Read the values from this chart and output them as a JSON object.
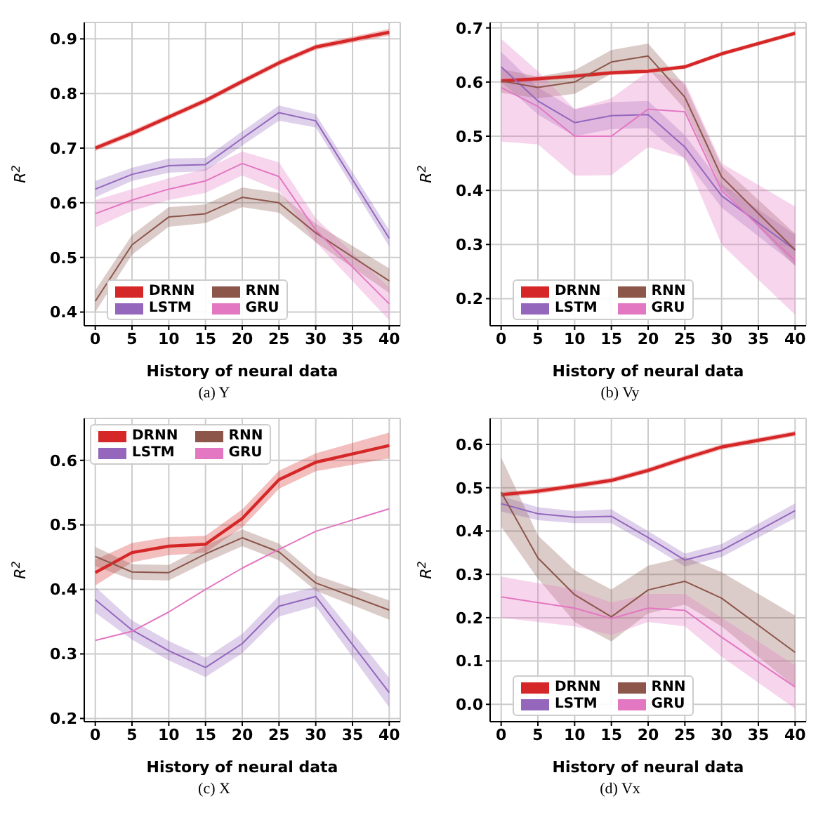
{
  "chart_data": [
    {
      "type": "line",
      "title": "(a) Y",
      "xlabel": "History of neural data",
      "ylabel": "R$^{2}$",
      "x": [
        0,
        5,
        10,
        15,
        20,
        25,
        30,
        40
      ],
      "xlim": [
        -1.5,
        41.5
      ],
      "xticks": [
        0,
        5,
        10,
        15,
        20,
        25,
        30,
        35,
        40
      ],
      "ylim": [
        0.375,
        0.93
      ],
      "yticks": [
        0.4,
        0.5,
        0.6,
        0.7,
        0.8,
        0.9
      ],
      "grid": true,
      "legend": "bottom left",
      "marker": "none",
      "line_style": "solid",
      "series": [
        {
          "name": "DRNN",
          "color": "#d62728",
          "values": [
            0.7,
            0.727,
            0.757,
            0.787,
            0.822,
            0.856,
            0.885,
            0.912
          ],
          "lower": [
            0.695,
            0.722,
            0.752,
            0.782,
            0.817,
            0.851,
            0.88,
            0.906
          ],
          "upper": [
            0.705,
            0.732,
            0.762,
            0.792,
            0.827,
            0.861,
            0.89,
            0.918
          ]
        },
        {
          "name": "LSTM",
          "color": "#9467bd",
          "values": [
            0.625,
            0.652,
            0.668,
            0.67,
            0.718,
            0.765,
            0.75,
            0.535
          ],
          "lower": [
            0.61,
            0.64,
            0.655,
            0.658,
            0.705,
            0.75,
            0.738,
            0.52
          ],
          "upper": [
            0.64,
            0.664,
            0.681,
            0.682,
            0.731,
            0.778,
            0.762,
            0.55
          ]
        },
        {
          "name": "RNN",
          "color": "#8c564b",
          "values": [
            0.42,
            0.523,
            0.574,
            0.58,
            0.61,
            0.6,
            0.545,
            0.457
          ],
          "lower": [
            0.4,
            0.505,
            0.556,
            0.563,
            0.592,
            0.582,
            0.528,
            0.435
          ],
          "upper": [
            0.44,
            0.541,
            0.592,
            0.597,
            0.628,
            0.618,
            0.562,
            0.48
          ]
        },
        {
          "name": "GRU",
          "color": "#e377c2",
          "values": [
            0.58,
            0.605,
            0.625,
            0.64,
            0.672,
            0.648,
            0.55,
            0.415
          ],
          "lower": [
            0.555,
            0.585,
            0.605,
            0.618,
            0.65,
            0.622,
            0.528,
            0.385
          ],
          "upper": [
            0.605,
            0.625,
            0.645,
            0.662,
            0.694,
            0.674,
            0.572,
            0.445
          ]
        }
      ]
    },
    {
      "type": "line",
      "title": "(b) Vy",
      "xlabel": "History of neural data",
      "ylabel": "R$^{2}$",
      "x": [
        0,
        5,
        10,
        15,
        20,
        25,
        30,
        40
      ],
      "xlim": [
        -1.5,
        41.5
      ],
      "xticks": [
        0,
        5,
        10,
        15,
        20,
        25,
        30,
        35,
        40
      ],
      "ylim": [
        0.15,
        0.71
      ],
      "yticks": [
        0.2,
        0.3,
        0.4,
        0.5,
        0.6,
        0.7
      ],
      "grid": true,
      "legend": "bottom left",
      "marker": "none",
      "line_style": "solid",
      "series": [
        {
          "name": "DRNN",
          "color": "#d62728",
          "values": [
            0.602,
            0.606,
            0.611,
            0.617,
            0.62,
            0.628,
            0.652,
            0.69
          ],
          "lower": [
            0.598,
            0.602,
            0.607,
            0.613,
            0.616,
            0.624,
            0.648,
            0.686
          ],
          "upper": [
            0.606,
            0.61,
            0.615,
            0.621,
            0.624,
            0.632,
            0.656,
            0.694
          ]
        },
        {
          "name": "LSTM",
          "color": "#9467bd",
          "values": [
            0.628,
            0.565,
            0.525,
            0.538,
            0.54,
            0.48,
            0.39,
            0.29
          ],
          "lower": [
            0.6,
            0.54,
            0.5,
            0.513,
            0.515,
            0.458,
            0.368,
            0.262
          ],
          "upper": [
            0.656,
            0.59,
            0.55,
            0.563,
            0.565,
            0.502,
            0.412,
            0.318
          ]
        },
        {
          "name": "RNN",
          "color": "#8c564b",
          "values": [
            0.602,
            0.59,
            0.6,
            0.637,
            0.648,
            0.572,
            0.425,
            0.29
          ],
          "lower": [
            0.58,
            0.57,
            0.578,
            0.615,
            0.625,
            0.55,
            0.405,
            0.26
          ],
          "upper": [
            0.624,
            0.61,
            0.622,
            0.659,
            0.671,
            0.594,
            0.445,
            0.32
          ]
        },
        {
          "name": "GRU",
          "color": "#e377c2",
          "values": [
            0.59,
            0.555,
            0.5,
            0.5,
            0.55,
            0.545,
            0.4,
            0.27
          ],
          "lower": [
            0.49,
            0.485,
            0.427,
            0.428,
            0.48,
            0.46,
            0.3,
            0.17
          ],
          "upper": [
            0.68,
            0.62,
            0.55,
            0.57,
            0.62,
            0.6,
            0.45,
            0.37
          ]
        }
      ]
    },
    {
      "type": "line",
      "title": "(c) X",
      "xlabel": "History of neural data",
      "ylabel": "R$^{2}$",
      "x": [
        0,
        5,
        10,
        15,
        20,
        25,
        30,
        40
      ],
      "xlim": [
        -1.5,
        41.5
      ],
      "xticks": [
        0,
        5,
        10,
        15,
        20,
        25,
        30,
        35,
        40
      ],
      "ylim": [
        0.195,
        0.665
      ],
      "yticks": [
        0.2,
        0.3,
        0.4,
        0.5,
        0.6
      ],
      "grid": true,
      "legend": "top left",
      "marker": "none",
      "line_style": "solid",
      "series": [
        {
          "name": "DRNN",
          "color": "#d62728",
          "values": [
            0.426,
            0.457,
            0.467,
            0.47,
            0.51,
            0.57,
            0.597,
            0.623
          ],
          "lower": [
            0.406,
            0.442,
            0.453,
            0.457,
            0.496,
            0.556,
            0.583,
            0.603
          ],
          "upper": [
            0.446,
            0.472,
            0.481,
            0.483,
            0.524,
            0.584,
            0.611,
            0.643
          ]
        },
        {
          "name": "LSTM",
          "color": "#9467bd",
          "values": [
            0.384,
            0.337,
            0.305,
            0.279,
            0.316,
            0.374,
            0.389,
            0.24
          ],
          "lower": [
            0.364,
            0.322,
            0.29,
            0.264,
            0.301,
            0.358,
            0.374,
            0.217
          ],
          "upper": [
            0.404,
            0.352,
            0.32,
            0.294,
            0.331,
            0.39,
            0.404,
            0.263
          ]
        },
        {
          "name": "RNN",
          "color": "#8c564b",
          "values": [
            0.451,
            0.427,
            0.426,
            0.455,
            0.48,
            0.458,
            0.41,
            0.368
          ],
          "lower": [
            0.436,
            0.415,
            0.414,
            0.442,
            0.467,
            0.445,
            0.398,
            0.353
          ],
          "upper": [
            0.466,
            0.439,
            0.438,
            0.468,
            0.493,
            0.471,
            0.422,
            0.383
          ]
        },
        {
          "name": "GRU",
          "color": "#e377c2",
          "values": [
            0.321,
            0.335,
            0.365,
            0.4,
            0.433,
            0.462,
            0.49,
            0.525
          ]
        }
      ]
    },
    {
      "type": "line",
      "title": "(d) Vx",
      "xlabel": "History of neural data",
      "ylabel": "R$^{2}$",
      "x": [
        0,
        5,
        10,
        15,
        20,
        25,
        30,
        40
      ],
      "xlim": [
        -1.5,
        41.5
      ],
      "xticks": [
        0,
        5,
        10,
        15,
        20,
        25,
        30,
        35,
        40
      ],
      "ylim": [
        -0.04,
        0.66
      ],
      "yticks": [
        {
          "value": 0,
          "label": "0.0"
        },
        0.1,
        0.2,
        0.3,
        0.4,
        0.5,
        0.6
      ],
      "grid": true,
      "legend": "bottom left",
      "marker": "none",
      "line_style": "solid",
      "series": [
        {
          "name": "DRNN",
          "color": "#d62728",
          "values": [
            0.484,
            0.492,
            0.504,
            0.517,
            0.54,
            0.568,
            0.594,
            0.625
          ],
          "lower": [
            0.478,
            0.486,
            0.498,
            0.511,
            0.534,
            0.562,
            0.588,
            0.619
          ],
          "upper": [
            0.49,
            0.498,
            0.51,
            0.523,
            0.546,
            0.574,
            0.6,
            0.631
          ]
        },
        {
          "name": "LSTM",
          "color": "#9467bd",
          "values": [
            0.463,
            0.44,
            0.432,
            0.434,
            0.385,
            0.333,
            0.355,
            0.447
          ],
          "lower": [
            0.445,
            0.425,
            0.418,
            0.418,
            0.37,
            0.318,
            0.34,
            0.43
          ],
          "upper": [
            0.481,
            0.455,
            0.446,
            0.45,
            0.4,
            0.348,
            0.37,
            0.464
          ]
        },
        {
          "name": "RNN",
          "color": "#8c564b",
          "values": [
            0.49,
            0.338,
            0.253,
            0.202,
            0.264,
            0.284,
            0.245,
            0.12
          ],
          "lower": [
            0.41,
            0.29,
            0.19,
            0.145,
            0.21,
            0.23,
            0.18,
            0.04
          ],
          "upper": [
            0.57,
            0.39,
            0.31,
            0.265,
            0.32,
            0.34,
            0.305,
            0.205
          ]
        },
        {
          "name": "GRU",
          "color": "#e377c2",
          "values": [
            0.248,
            0.235,
            0.222,
            0.198,
            0.222,
            0.217,
            0.155,
            0.04
          ],
          "lower": [
            0.2,
            0.19,
            0.18,
            0.16,
            0.19,
            0.18,
            0.11,
            -0.01
          ],
          "upper": [
            0.295,
            0.28,
            0.265,
            0.235,
            0.255,
            0.255,
            0.2,
            0.09
          ]
        }
      ]
    }
  ]
}
